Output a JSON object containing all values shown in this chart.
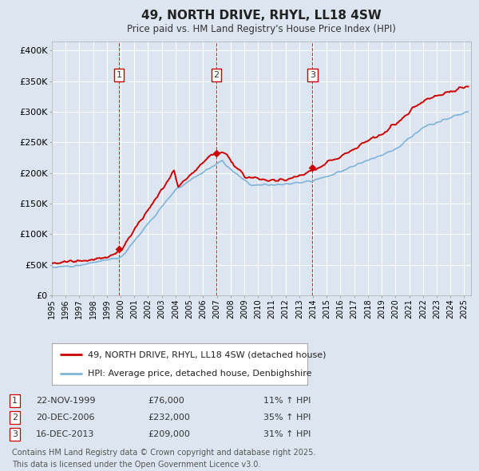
{
  "title": "49, NORTH DRIVE, RHYL, LL18 4SW",
  "subtitle": "Price paid vs. HM Land Registry's House Price Index (HPI)",
  "background_color": "#dde6f0",
  "plot_bg_color": "#dde6f0",
  "grid_color": "#ffffff",
  "ylabel_ticks": [
    "£0",
    "£50K",
    "£100K",
    "£150K",
    "£200K",
    "£250K",
    "£300K",
    "£350K",
    "£400K"
  ],
  "ytick_values": [
    0,
    50000,
    100000,
    150000,
    200000,
    250000,
    300000,
    350000,
    400000
  ],
  "x_start_year": 1995,
  "x_end_year": 2025,
  "legend_line1": "49, NORTH DRIVE, RHYL, LL18 4SW (detached house)",
  "legend_line2": "HPI: Average price, detached house, Denbighshire",
  "sale1_date": "22-NOV-1999",
  "sale1_price": 76000,
  "sale1_hpi": "11% ↑ HPI",
  "sale1_label": "1",
  "sale1_year": 1999.89,
  "sale2_date": "20-DEC-2006",
  "sale2_price": 232000,
  "sale2_hpi": "35% ↑ HPI",
  "sale2_label": "2",
  "sale2_year": 2006.96,
  "sale3_date": "16-DEC-2013",
  "sale3_price": 209000,
  "sale3_hpi": "31% ↑ HPI",
  "sale3_label": "3",
  "sale3_year": 2013.96,
  "footer1": "Contains HM Land Registry data © Crown copyright and database right 2025.",
  "footer2": "This data is licensed under the Open Government Licence v3.0.",
  "red_color": "#cc0000",
  "blue_color": "#7fb3d9"
}
